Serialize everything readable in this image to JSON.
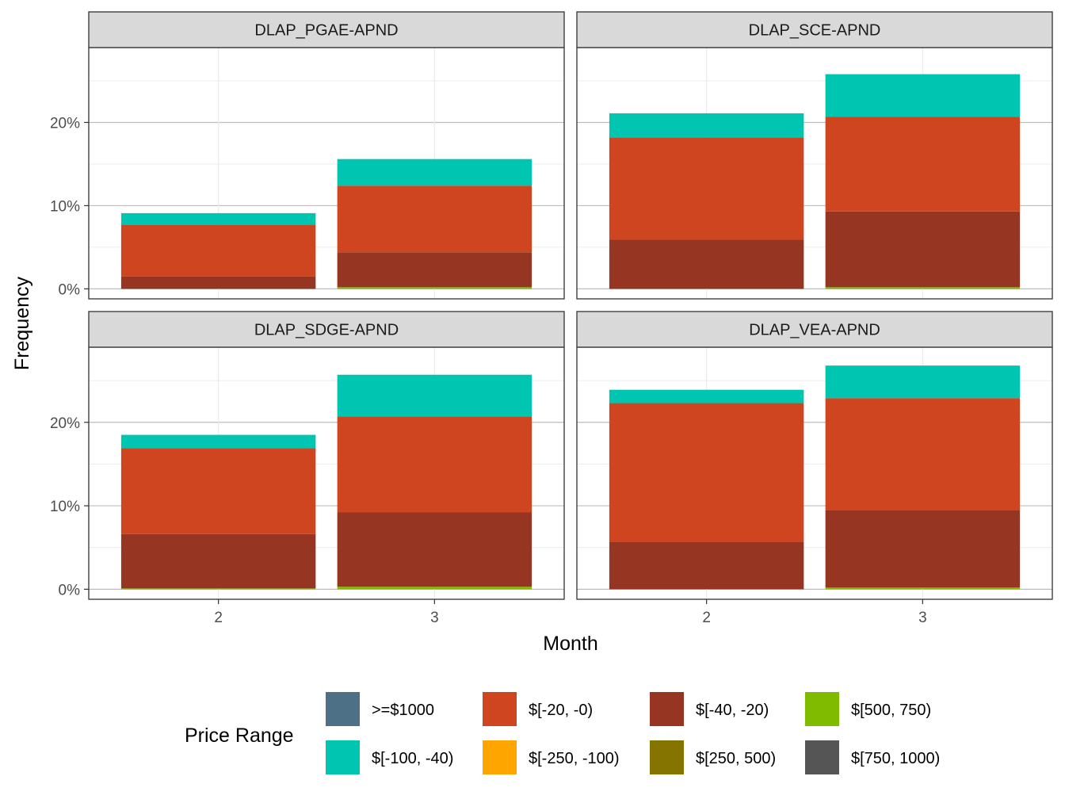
{
  "chart_data": {
    "type": "bar",
    "stacked": true,
    "xlabel": "Month",
    "ylabel": "Frequency",
    "ylim": [
      -0.012,
      0.29
    ],
    "yticks": [
      0,
      0.1,
      0.2
    ],
    "ytick_labels": [
      "0%",
      "10%",
      "20%"
    ],
    "categories": [
      "2",
      "3"
    ],
    "grid": true,
    "legend": {
      "title": "Price Range",
      "position": "bottom",
      "entries": [
        {
          "label": ">=$1000",
          "color": "#4E7087"
        },
        {
          "label": "$[-100, -40)",
          "color": "#00C5B0"
        },
        {
          "label": "$[-20, -0)",
          "color": "#CF4520"
        },
        {
          "label": "$[-250, -100)",
          "color": "#FFA500"
        },
        {
          "label": "$[-40, -20)",
          "color": "#963521"
        },
        {
          "label": "$[250, 500)",
          "color": "#857500"
        },
        {
          "label": "$[500, 750)",
          "color": "#80BB00"
        },
        {
          "label": "$[750, 1000)",
          "color": "#555555"
        }
      ]
    },
    "panels": [
      {
        "title": "DLAP_PGAE-APND",
        "series": [
          {
            "name": "$[500, 750)",
            "values": [
              0.0,
              0.002
            ]
          },
          {
            "name": "$[-40, -20)",
            "values": [
              0.015,
              0.042
            ]
          },
          {
            "name": "$[-20, -0)",
            "values": [
              0.062,
              0.08
            ]
          },
          {
            "name": "$[-100, -40)",
            "values": [
              0.014,
              0.032
            ]
          }
        ]
      },
      {
        "title": "DLAP_SCE-APND",
        "series": [
          {
            "name": "$[500, 750)",
            "values": [
              0.0,
              0.002
            ]
          },
          {
            "name": "$[-40, -20)",
            "values": [
              0.059,
              0.091
            ]
          },
          {
            "name": "$[-20, -0)",
            "values": [
              0.123,
              0.114
            ]
          },
          {
            "name": "$[-100, -40)",
            "values": [
              0.029,
              0.051
            ]
          }
        ]
      },
      {
        "title": "DLAP_SDGE-APND",
        "series": [
          {
            "name": "$[500, 750)",
            "values": [
              0.001,
              0.003
            ]
          },
          {
            "name": "$[-40, -20)",
            "values": [
              0.065,
              0.089
            ]
          },
          {
            "name": "$[-20, -0)",
            "values": [
              0.103,
              0.115
            ]
          },
          {
            "name": "$[-100, -40)",
            "values": [
              0.016,
              0.05
            ]
          }
        ]
      },
      {
        "title": "DLAP_VEA-APND",
        "series": [
          {
            "name": "$[500, 750)",
            "values": [
              0.0,
              0.002
            ]
          },
          {
            "name": "$[-40, -20)",
            "values": [
              0.057,
              0.093
            ]
          },
          {
            "name": "$[-20, -0)",
            "values": [
              0.166,
              0.134
            ]
          },
          {
            "name": "$[-100, -40)",
            "values": [
              0.016,
              0.039
            ]
          }
        ]
      }
    ]
  }
}
